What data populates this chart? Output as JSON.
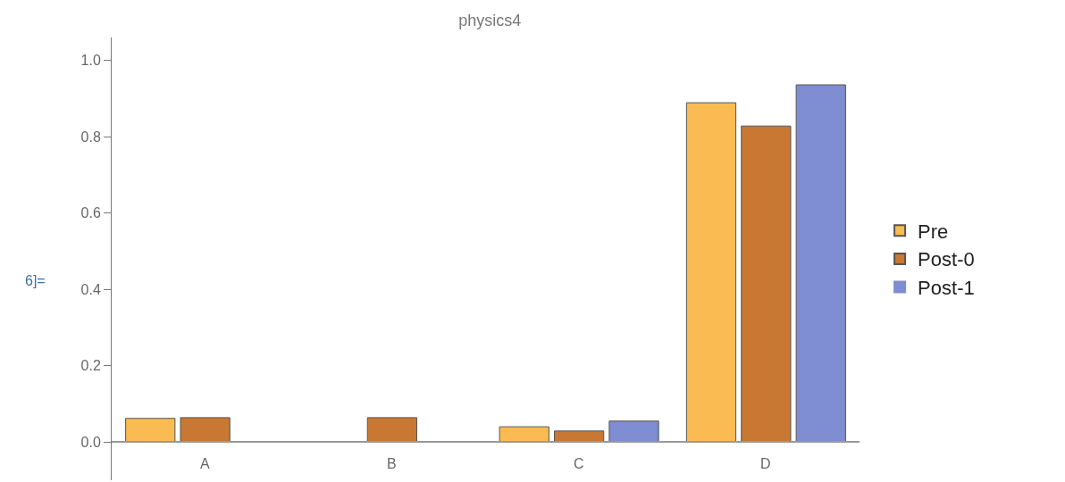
{
  "chart_data": {
    "type": "bar",
    "title": "physics4",
    "categories": [
      "A",
      "B",
      "C",
      "D"
    ],
    "series": [
      {
        "name": "Pre",
        "color": "#f9bb52",
        "values": [
          0.062,
          0,
          0.04,
          0.889
        ]
      },
      {
        "name": "Post-0",
        "color": "#c87832",
        "values": [
          0.064,
          0.064,
          0.029,
          0.828
        ]
      },
      {
        "name": "Post-1",
        "color": "#7f8dd2",
        "values": [
          0,
          0,
          0.055,
          0.936
        ]
      }
    ],
    "ylim": [
      -0.1,
      1.06
    ],
    "yticks": [
      {
        "value": 0,
        "label": "0.0"
      },
      0.2,
      0.4,
      0.6,
      0.8,
      {
        "value": 1,
        "label": "1.0"
      }
    ],
    "legend": "right",
    "annotations": [
      "6]="
    ]
  }
}
